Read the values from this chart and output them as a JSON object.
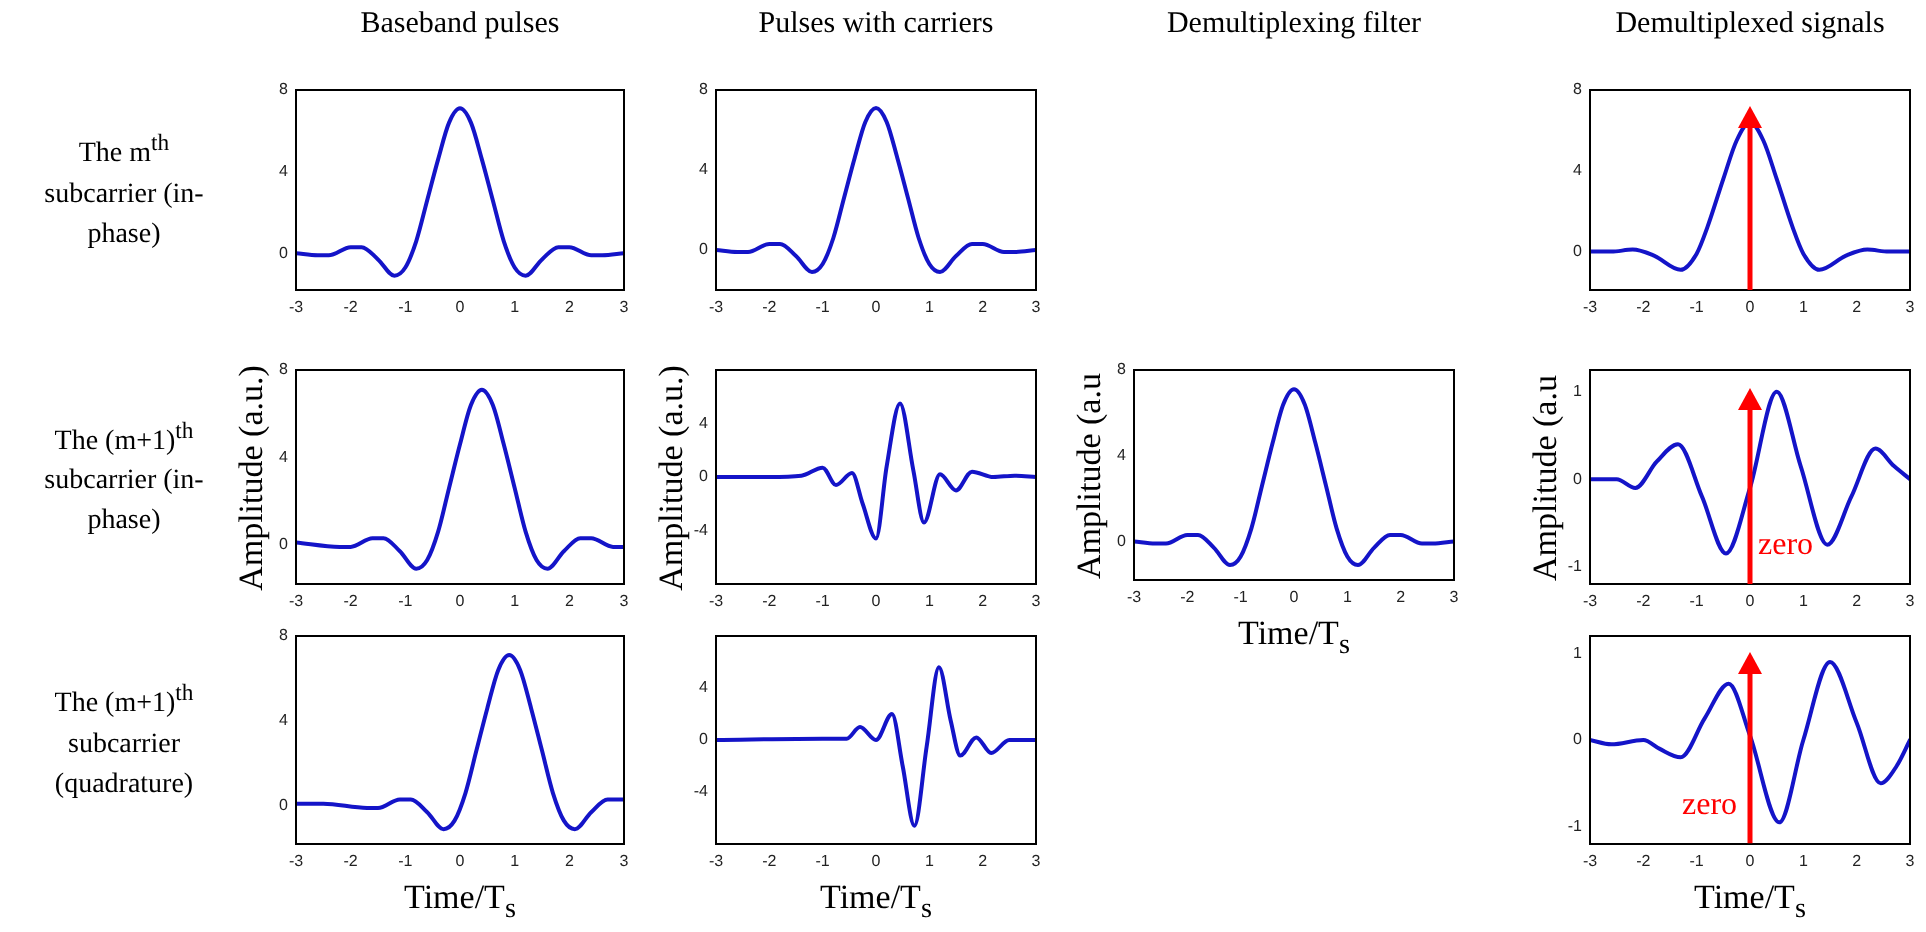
{
  "chart_data": [
    {
      "type": "line",
      "title": "Baseband pulses",
      "annotations": [
        "The m$^{th}$ subcarrier (in-phase)"
      ],
      "color": "#1414c8",
      "xlim": [
        -3,
        3
      ],
      "xticks": [
        -3,
        -2,
        -1,
        0,
        1,
        2,
        3
      ],
      "ylim": [
        -1.8,
        8
      ],
      "yticks": [
        0,
        4,
        8
      ],
      "x": [
        -3,
        -2.6,
        -2.4,
        -2,
        -1.8,
        -1.5,
        -1.2,
        -1,
        -0.8,
        -0.6,
        -0.4,
        -0.2,
        0,
        0.2,
        0.4,
        0.6,
        0.8,
        1,
        1.2,
        1.5,
        1.8,
        2,
        2.4,
        2.6,
        3
      ],
      "values": [
        0,
        -0.1,
        -0.1,
        0.3,
        0.3,
        -0.3,
        -1.1,
        -0.7,
        0.6,
        2.6,
        4.6,
        6.4,
        7.1,
        6.4,
        4.6,
        2.6,
        0.6,
        -0.7,
        -1.1,
        -0.3,
        0.3,
        0.3,
        -0.1,
        -0.1,
        0
      ]
    },
    {
      "type": "line",
      "title": "Pulses with carriers",
      "color": "#1414c8",
      "xlim": [
        -3,
        3
      ],
      "xticks": [
        -3,
        -2,
        -1,
        0,
        1,
        2,
        3
      ],
      "ylim": [
        -2,
        8
      ],
      "yticks": [
        0,
        4,
        8
      ],
      "x": [
        -3,
        -2.6,
        -2.4,
        -2,
        -1.8,
        -1.5,
        -1.2,
        -1,
        -0.8,
        -0.6,
        -0.4,
        -0.2,
        0,
        0.2,
        0.4,
        0.6,
        0.8,
        1,
        1.2,
        1.5,
        1.8,
        2,
        2.4,
        2.6,
        3
      ],
      "values": [
        0,
        -0.1,
        -0.1,
        0.3,
        0.3,
        -0.3,
        -1.1,
        -0.7,
        0.6,
        2.6,
        4.6,
        6.4,
        7.1,
        6.4,
        4.6,
        2.6,
        0.6,
        -0.7,
        -1.1,
        -0.3,
        0.3,
        0.3,
        -0.1,
        -0.1,
        0
      ]
    },
    {
      "type": "line",
      "title": "Demultiplexed signals",
      "xlim": [
        -3,
        3
      ],
      "xticks": [
        -3,
        -2,
        -1,
        0,
        1,
        2,
        3
      ],
      "ylim": [
        -1.9,
        8
      ],
      "yticks": [
        0,
        4,
        8
      ],
      "ref_lines": [
        {
          "axis": "x",
          "value": 0,
          "color": "#ff0000"
        }
      ],
      "color": "#1414c8",
      "x": [
        -3,
        -2.6,
        -2.2,
        -1.8,
        -1.3,
        -1,
        -0.8,
        -0.5,
        -0.25,
        0,
        0.25,
        0.5,
        0.8,
        1,
        1.3,
        1.8,
        2.2,
        2.6,
        3
      ],
      "values": [
        0,
        0,
        0.1,
        -0.2,
        -0.9,
        -0.1,
        1.2,
        3.6,
        5.5,
        6.4,
        5.5,
        3.6,
        1.2,
        -0.1,
        -0.9,
        -0.2,
        0.1,
        0,
        0
      ]
    },
    {
      "type": "line",
      "ylabel": "Amplitude (a.u.)",
      "annotations": [
        "The (m+1)$^{th}$ subcarrier (in-phase)"
      ],
      "color": "#1414c8",
      "xlim": [
        -3,
        3
      ],
      "xticks": [
        -3,
        -2,
        -1,
        0,
        1,
        2,
        3
      ],
      "ylim": [
        -1.8,
        8
      ],
      "yticks": [
        0,
        4,
        8
      ],
      "x": [
        -3,
        -2.2,
        -2,
        -1.6,
        -1.4,
        -1.1,
        -0.8,
        -0.6,
        -0.4,
        -0.2,
        0,
        0.2,
        0.4,
        0.6,
        0.8,
        1,
        1.2,
        1.4,
        1.6,
        1.9,
        2.2,
        2.4,
        2.8,
        3
      ],
      "values": [
        0.1,
        -0.1,
        -0.1,
        0.3,
        0.3,
        -0.3,
        -1.1,
        -0.7,
        0.6,
        2.6,
        4.6,
        6.4,
        7.1,
        6.4,
        4.6,
        2.6,
        0.6,
        -0.7,
        -1.1,
        -0.3,
        0.3,
        0.3,
        -0.1,
        -0.1
      ]
    },
    {
      "type": "line",
      "ylabel": "Amplitude (a.u.)",
      "color": "#1414c8",
      "xlim": [
        -3,
        3
      ],
      "xticks": [
        -3,
        -2,
        -1,
        0,
        1,
        2,
        3
      ],
      "ylim": [
        -8,
        8
      ],
      "yticks": [
        -4,
        0,
        4
      ],
      "x": [
        -3,
        -2,
        -1.4,
        -1,
        -0.75,
        -0.45,
        -0.25,
        0,
        0.2,
        0.45,
        0.7,
        0.9,
        1.2,
        1.5,
        1.8,
        2.2,
        2.6,
        3
      ],
      "values": [
        0,
        0,
        0.1,
        0.7,
        -0.6,
        0.3,
        -2,
        -4.6,
        0.8,
        5.5,
        0.5,
        -3.4,
        0.2,
        -1,
        0.4,
        0,
        0.1,
        0
      ]
    },
    {
      "type": "line",
      "title": "Demultiplexing filter",
      "ylabel": "Amplitude (a.u",
      "xlabel": "Time/T$_{s}$",
      "color": "#1414c8",
      "xlim": [
        -3,
        3
      ],
      "xticks": [
        -3,
        -2,
        -1,
        0,
        1,
        2,
        3
      ],
      "ylim": [
        -1.8,
        8
      ],
      "yticks": [
        0,
        4,
        8
      ],
      "x": [
        -3,
        -2.6,
        -2.4,
        -2,
        -1.8,
        -1.5,
        -1.2,
        -1,
        -0.8,
        -0.6,
        -0.4,
        -0.2,
        0,
        0.2,
        0.4,
        0.6,
        0.8,
        1,
        1.2,
        1.5,
        1.8,
        2,
        2.4,
        2.6,
        3
      ],
      "values": [
        0,
        -0.1,
        -0.1,
        0.3,
        0.3,
        -0.3,
        -1.1,
        -0.7,
        0.6,
        2.6,
        4.6,
        6.4,
        7.1,
        6.4,
        4.6,
        2.6,
        0.6,
        -0.7,
        -1.1,
        -0.3,
        0.3,
        0.3,
        -0.1,
        -0.1,
        0
      ]
    },
    {
      "type": "line",
      "ylabel": "Amplitude (a.u",
      "xlim": [
        -3,
        3
      ],
      "xticks": [
        -3,
        -2,
        -1,
        0,
        1,
        2,
        3
      ],
      "ylim": [
        -1.2,
        1.25
      ],
      "yticks": [
        -1,
        0,
        1
      ],
      "ref_lines": [
        {
          "axis": "x",
          "value": 0,
          "label": "zero",
          "color": "#ff0000"
        }
      ],
      "color": "#1414c8",
      "x": [
        -3,
        -2.5,
        -2.15,
        -1.75,
        -1.35,
        -0.9,
        -0.45,
        0,
        0.5,
        0.95,
        1.45,
        1.9,
        2.35,
        2.7,
        3
      ],
      "values": [
        0,
        0,
        -0.1,
        0.2,
        0.4,
        -0.2,
        -0.85,
        -0.1,
        1,
        0.15,
        -0.75,
        -0.2,
        0.35,
        0.15,
        0
      ]
    },
    {
      "type": "line",
      "xlabel": "Time/T$_{s}$",
      "annotations": [
        "The (m+1)$^{th}$ subcarrier (quadrature)"
      ],
      "color": "#1414c8",
      "xlim": [
        -3,
        3
      ],
      "xticks": [
        -3,
        -2,
        -1,
        0,
        1,
        2,
        3
      ],
      "ylim": [
        -1.8,
        8
      ],
      "yticks": [
        0,
        4,
        8
      ],
      "x": [
        -3,
        -2.5,
        -1.7,
        -1.5,
        -1.1,
        -0.9,
        -0.6,
        -0.3,
        -0.1,
        0.1,
        0.3,
        0.5,
        0.7,
        0.9,
        1.1,
        1.3,
        1.5,
        1.7,
        1.9,
        2.1,
        2.4,
        2.7,
        2.9,
        3
      ],
      "values": [
        0.1,
        0.1,
        -0.1,
        -0.1,
        0.3,
        0.3,
        -0.3,
        -1.1,
        -0.7,
        0.6,
        2.6,
        4.6,
        6.4,
        7.1,
        6.4,
        4.6,
        2.6,
        0.6,
        -0.7,
        -1.1,
        -0.3,
        0.3,
        0.3,
        0.3
      ]
    },
    {
      "type": "line",
      "xlabel": "Time/T$_{s}$",
      "color": "#1414c8",
      "xlim": [
        -3,
        3
      ],
      "xticks": [
        -3,
        -2,
        -1,
        0,
        1,
        2,
        3
      ],
      "ylim": [
        -8,
        8
      ],
      "yticks": [
        -4,
        0,
        4
      ],
      "x": [
        -3,
        -1,
        -0.55,
        -0.3,
        0,
        0.3,
        0.5,
        0.72,
        0.95,
        1.18,
        1.4,
        1.58,
        1.88,
        2.16,
        2.5,
        3
      ],
      "values": [
        0,
        0.1,
        0.1,
        1.0,
        0,
        2.0,
        -2,
        -6.6,
        -0.5,
        5.6,
        1.5,
        -1.2,
        0.2,
        -1,
        0,
        0
      ]
    },
    {
      "type": "line",
      "xlabel": "Time/T$_{s}$",
      "xlim": [
        -3,
        3
      ],
      "xticks": [
        -3,
        -2,
        -1,
        0,
        1,
        2,
        3
      ],
      "ylim": [
        -1.2,
        1.2
      ],
      "yticks": [
        -1,
        0,
        1
      ],
      "ref_lines": [
        {
          "axis": "x",
          "value": 0,
          "label": "zero",
          "color": "#ff0000"
        }
      ],
      "color": "#1414c8",
      "x": [
        -3,
        -2.6,
        -2,
        -1.7,
        -1.3,
        -0.85,
        -0.4,
        0,
        0.55,
        1,
        1.5,
        2,
        2.45,
        2.75,
        3
      ],
      "values": [
        0,
        -0.05,
        0,
        -0.1,
        -0.2,
        0.25,
        0.65,
        0.05,
        -0.95,
        0,
        0.9,
        0.2,
        -0.5,
        -0.3,
        0
      ]
    }
  ]
}
